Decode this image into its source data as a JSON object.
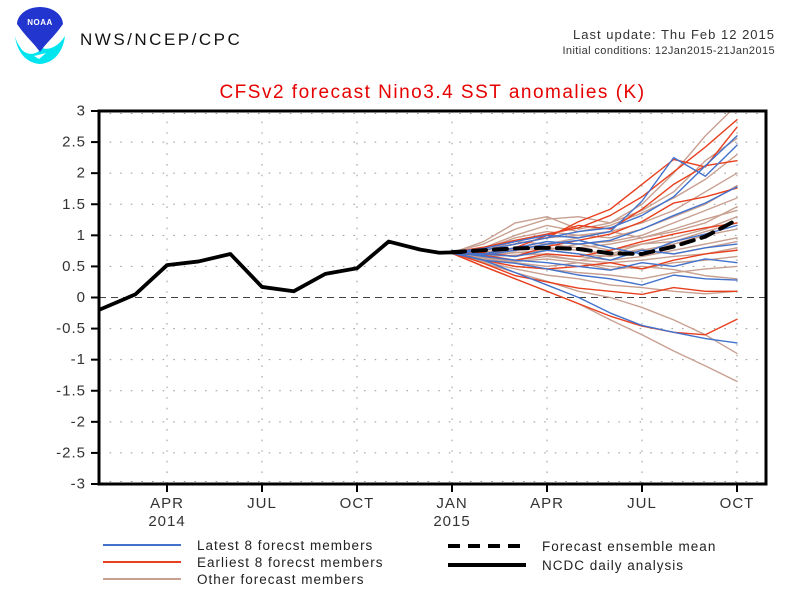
{
  "header": {
    "agency": "NWS/NCEP/CPC",
    "logo_text": "NOAA",
    "last_update": "Last update: Thu Feb 12 2015",
    "initial_conditions": "Initial conditions: 12Jan2015-21Jan2015"
  },
  "chart_data": {
    "type": "line",
    "title": "CFSv2 forecast Nino3.4 SST anomalies (K)",
    "title_color": "#e60000",
    "xlabel": "",
    "ylabel": "",
    "ylim": [
      -3,
      3
    ],
    "grid": "dotted",
    "legend_position": "bottom",
    "t_unit": "months_since_Jan2014",
    "y_axis": {
      "ticks": [
        {
          "value": 3,
          "label": "3"
        },
        {
          "value": 2.5,
          "label": "2.5"
        },
        {
          "value": 2,
          "label": "2"
        },
        {
          "value": 1.5,
          "label": "1.5"
        },
        {
          "value": 1,
          "label": "1"
        },
        {
          "value": 0.5,
          "label": "0.5"
        },
        {
          "value": 0,
          "label": "0"
        },
        {
          "value": -0.5,
          "label": "-0.5"
        },
        {
          "value": -1,
          "label": "-1"
        },
        {
          "value": -1.5,
          "label": "-1.5"
        },
        {
          "value": -2,
          "label": "-2"
        },
        {
          "value": -2.5,
          "label": "-2.5"
        },
        {
          "value": -3,
          "label": "-3"
        }
      ]
    },
    "x_axis": {
      "ticks": [
        {
          "t": 3,
          "label": "APR",
          "year": "2014"
        },
        {
          "t": 6,
          "label": "JUL"
        },
        {
          "t": 9,
          "label": "OCT"
        },
        {
          "t": 12,
          "label": "JAN",
          "year": "2015"
        },
        {
          "t": 15,
          "label": "APR"
        },
        {
          "t": 18,
          "label": "JUL"
        },
        {
          "t": 21,
          "label": "OCT"
        }
      ]
    },
    "observed": {
      "name": "NCDC daily analysis",
      "color": "#000000",
      "points": [
        [
          0.85,
          -0.2
        ],
        [
          2,
          0.05
        ],
        [
          3,
          0.52
        ],
        [
          4,
          0.58
        ],
        [
          5,
          0.7
        ],
        [
          6,
          0.17
        ],
        [
          7,
          0.1
        ],
        [
          8,
          0.38
        ],
        [
          9,
          0.47
        ],
        [
          10,
          0.9
        ],
        [
          11,
          0.77
        ],
        [
          11.6,
          0.72
        ],
        [
          12.3,
          0.73
        ]
      ]
    },
    "ensemble_mean": {
      "name": "Forecast ensemble mean",
      "color": "#000000",
      "style": "dashed",
      "start_month": "Jan 2015",
      "values": [
        0.73,
        0.76,
        0.79,
        0.8,
        0.78,
        0.71,
        0.7,
        0.82,
        0.98,
        1.25
      ]
    },
    "member_groups": [
      {
        "name": "Latest 8 forecst members",
        "color": "#4272cc",
        "series": [
          [
            0.72,
            0.76,
            0.86,
            0.96,
            1.06,
            1.12,
            1.32,
            1.62,
            2.12,
            2.6
          ],
          [
            0.73,
            0.79,
            0.9,
            1.0,
            0.96,
            1.06,
            1.55,
            2.25,
            1.95,
            2.45
          ],
          [
            0.72,
            0.7,
            0.8,
            0.9,
            0.86,
            0.92,
            1.1,
            1.32,
            1.52,
            1.78
          ],
          [
            0.71,
            0.68,
            0.76,
            0.86,
            0.92,
            0.8,
            0.7,
            0.9,
            1.02,
            1.16
          ],
          [
            0.72,
            0.7,
            0.66,
            0.76,
            0.7,
            0.6,
            0.76,
            0.7,
            0.8,
            0.86
          ],
          [
            0.73,
            0.66,
            0.6,
            0.56,
            0.5,
            0.44,
            0.56,
            0.5,
            0.62,
            0.56
          ],
          [
            0.72,
            0.6,
            0.55,
            0.46,
            0.36,
            0.3,
            0.2,
            0.36,
            0.3,
            0.28
          ],
          [
            0.71,
            0.6,
            0.4,
            0.2,
            0.0,
            -0.25,
            -0.45,
            -0.56,
            -0.66,
            -0.73
          ]
        ]
      },
      {
        "name": "Earliest 8 forecst members",
        "color": "#e8401f",
        "series": [
          [
            0.73,
            0.81,
            0.92,
            1.02,
            1.12,
            1.32,
            1.62,
            2.02,
            2.42,
            2.86
          ],
          [
            0.72,
            0.76,
            0.86,
            0.96,
            1.22,
            1.42,
            1.82,
            2.22,
            2.1,
            2.74
          ],
          [
            0.72,
            0.7,
            0.8,
            1.0,
            1.16,
            1.1,
            1.42,
            1.82,
            2.12,
            2.2
          ],
          [
            0.71,
            0.72,
            0.66,
            0.82,
            0.92,
            1.02,
            1.22,
            1.52,
            1.62,
            1.76
          ],
          [
            0.72,
            0.68,
            0.6,
            0.7,
            0.66,
            0.76,
            0.9,
            1.02,
            1.12,
            1.2
          ],
          [
            0.73,
            0.6,
            0.5,
            0.46,
            0.5,
            0.56,
            0.46,
            0.6,
            0.7,
            0.76
          ],
          [
            0.72,
            0.55,
            0.35,
            0.25,
            0.15,
            0.1,
            0.05,
            0.16,
            0.1,
            0.1
          ],
          [
            0.71,
            0.5,
            0.3,
            0.1,
            -0.1,
            -0.3,
            -0.46,
            -0.56,
            -0.6,
            -0.35
          ]
        ]
      },
      {
        "name": "Other forecast members",
        "color": "#c8a091",
        "series": [
          [
            0.72,
            0.9,
            1.2,
            1.3,
            1.1,
            1.2,
            1.5,
            2.0,
            2.6,
            3.1
          ],
          [
            0.73,
            0.86,
            1.1,
            1.26,
            1.3,
            1.2,
            1.4,
            1.7,
            2.2,
            2.56
          ],
          [
            0.72,
            0.8,
            1.0,
            1.16,
            1.06,
            1.16,
            1.36,
            1.6,
            1.9,
            2.3
          ],
          [
            0.71,
            0.78,
            0.96,
            1.06,
            1.0,
            1.06,
            1.2,
            1.4,
            1.7,
            2.0
          ],
          [
            0.72,
            0.76,
            0.86,
            0.96,
            1.0,
            0.96,
            1.1,
            1.3,
            1.5,
            1.8
          ],
          [
            0.73,
            0.73,
            0.8,
            0.9,
            0.86,
            0.9,
            1.0,
            1.2,
            1.4,
            1.6
          ],
          [
            0.72,
            0.7,
            0.78,
            0.86,
            0.8,
            0.86,
            0.96,
            1.06,
            1.2,
            1.46
          ],
          [
            0.71,
            0.7,
            0.76,
            0.8,
            0.76,
            0.7,
            0.86,
            0.96,
            1.1,
            1.3
          ],
          [
            0.72,
            0.68,
            0.72,
            0.76,
            0.7,
            0.66,
            0.76,
            0.86,
            1.0,
            1.1
          ],
          [
            0.73,
            0.66,
            0.68,
            0.7,
            0.66,
            0.6,
            0.66,
            0.76,
            0.86,
            0.96
          ],
          [
            0.72,
            0.65,
            0.6,
            0.66,
            0.6,
            0.56,
            0.6,
            0.66,
            0.7,
            0.8
          ],
          [
            0.71,
            0.62,
            0.56,
            0.5,
            0.56,
            0.5,
            0.46,
            0.56,
            0.6,
            0.66
          ],
          [
            0.72,
            0.6,
            0.5,
            0.46,
            0.4,
            0.36,
            0.3,
            0.4,
            0.46,
            0.5
          ],
          [
            0.73,
            0.58,
            0.46,
            0.36,
            0.3,
            0.2,
            0.16,
            0.1,
            0.06,
            0.1
          ],
          [
            0.72,
            0.56,
            0.4,
            0.26,
            0.1,
            0.0,
            -0.16,
            -0.36,
            -0.6,
            -0.9
          ],
          [
            0.71,
            0.5,
            0.3,
            0.1,
            -0.1,
            -0.36,
            -0.6,
            -0.86,
            -1.1,
            -1.35
          ],
          [
            0.7,
            0.76,
            0.9,
            0.86,
            0.96,
            1.06,
            0.96,
            1.1,
            1.26,
            1.4
          ],
          [
            0.74,
            0.7,
            0.66,
            0.76,
            0.86,
            0.76,
            0.86,
            0.9,
            1.06,
            1.2
          ],
          [
            0.72,
            0.66,
            0.73,
            0.68,
            0.6,
            0.68,
            0.78,
            0.7,
            0.8,
            0.9
          ],
          [
            0.71,
            0.64,
            0.58,
            0.62,
            0.56,
            0.45,
            0.5,
            0.45,
            0.35,
            0.3
          ]
        ]
      }
    ]
  }
}
